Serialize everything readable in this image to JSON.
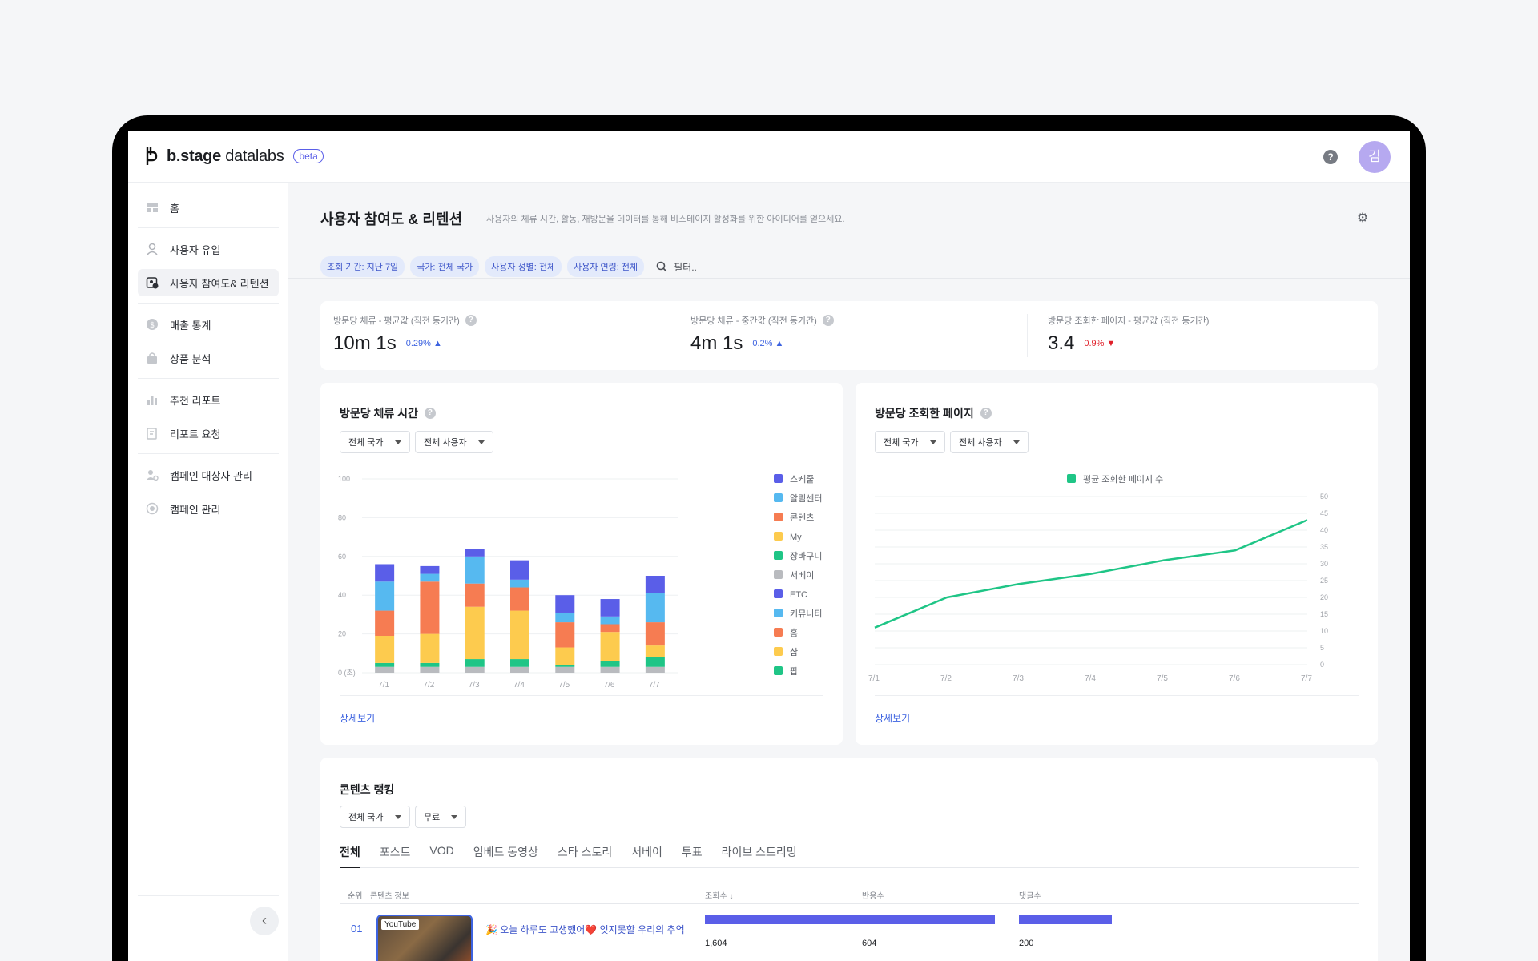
{
  "app": {
    "logo_main": "b.stage",
    "logo_sub": "datalabs",
    "beta": "beta",
    "help": "?",
    "avatar": "김"
  },
  "sidebar": {
    "items": [
      {
        "label": "홈",
        "icon": "dashboard-icon"
      },
      {
        "label": "사용자 유입",
        "icon": "user-icon"
      },
      {
        "label": "사용자 참여도& 리텐션",
        "icon": "engagement-icon",
        "active": true
      },
      {
        "label": "매출 통계",
        "icon": "dollar-icon"
      },
      {
        "label": "상품 분석",
        "icon": "bag-icon"
      },
      {
        "label": "추천 리포트",
        "icon": "bar-chart-icon"
      },
      {
        "label": "리포트 요청",
        "icon": "edit-doc-icon"
      },
      {
        "label": "캠페인 대상자 관리",
        "icon": "user-settings-icon"
      },
      {
        "label": "캠페인 관리",
        "icon": "target-icon"
      }
    ],
    "collapse": "‹"
  },
  "page": {
    "title": "사용자 참여도 & 리텐션",
    "description": "사용자의 체류 시간, 활동, 재방문율 데이터를 통해 비스테이지 활성화를 위한 아이디어를 얻으세요.",
    "filters": [
      "조회 기간: 지난 7일",
      "국가: 전체 국가",
      "사용자 성별: 전체",
      "사용자 연령: 전체"
    ],
    "filter_placeholder": "필터.."
  },
  "kpis": [
    {
      "label": "방문당 체류 - 평균값 (직전 동기간)",
      "value": "10m 1s",
      "delta": "0.29%",
      "direction": "up",
      "color": "#3d63e0"
    },
    {
      "label": "방문당 체류 - 중간값 (직전 동기간)",
      "value": "4m 1s",
      "delta": "0.2%",
      "direction": "up",
      "color": "#3d63e0"
    },
    {
      "label": "방문당 조회한 페이지 - 평균값 (직전 동기간)",
      "value": "3.4",
      "delta": "0.9%",
      "direction": "down",
      "color": "#e0202a"
    }
  ],
  "dwell_chart": {
    "title": "방문당 체류 시간",
    "dropdowns": [
      "전체 국가",
      "전체 사용자"
    ],
    "more": "상세보기"
  },
  "pages_chart": {
    "title": "방문당 조회한 페이지",
    "dropdowns": [
      "전체 국가",
      "전체 사용자"
    ],
    "more": "상세보기"
  },
  "chart_data": [
    {
      "type": "bar",
      "stacked": true,
      "title": "방문당 체류 시간",
      "categories": [
        "7/1",
        "7/2",
        "7/3",
        "7/4",
        "7/5",
        "7/6",
        "7/7"
      ],
      "y_ticks": [
        "0 (초)",
        "20",
        "40",
        "60",
        "80",
        "100"
      ],
      "ylim": [
        0,
        100
      ],
      "legend": [
        "스케줄",
        "알림센터",
        "콘텐츠",
        "My",
        "장바구니",
        "서베이",
        "ETC",
        "커뮤니티",
        "홈",
        "샵",
        "팝"
      ],
      "legend_colors": [
        "#5a5ee8",
        "#56b9f0",
        "#f67c52",
        "#fdcb4e",
        "#1fc586",
        "#b9bbbf",
        "#5a5ee8",
        "#56b9f0",
        "#f67c52",
        "#fdcb4e",
        "#1fc586"
      ],
      "series": [
        {
          "name": "서베이",
          "color": "#b9bbbf",
          "values": [
            3,
            3,
            3,
            3,
            3,
            3,
            3
          ]
        },
        {
          "name": "장바구니",
          "color": "#1fc586",
          "values": [
            2,
            2,
            4,
            4,
            1,
            3,
            5
          ]
        },
        {
          "name": "My",
          "color": "#fdcb4e",
          "values": [
            14,
            15,
            27,
            25,
            9,
            15,
            6
          ]
        },
        {
          "name": "콘텐츠",
          "color": "#f67c52",
          "values": [
            13,
            27,
            12,
            12,
            13,
            4,
            12
          ]
        },
        {
          "name": "알림센터",
          "color": "#56b9f0",
          "values": [
            15,
            4,
            14,
            4,
            5,
            4,
            15
          ]
        },
        {
          "name": "스케줄",
          "color": "#5a5ee8",
          "values": [
            9,
            4,
            4,
            10,
            9,
            9,
            9
          ]
        }
      ]
    },
    {
      "type": "line",
      "title": "방문당 조회한 페이지",
      "x": [
        "7/1",
        "7/2",
        "7/3",
        "7/4",
        "7/5",
        "7/6",
        "7/7"
      ],
      "y_ticks": [
        "0",
        "5",
        "10",
        "15",
        "20",
        "25",
        "30",
        "35",
        "40",
        "45",
        "50"
      ],
      "ylim": [
        0,
        50
      ],
      "y_axis_side": "right",
      "legend": "top-center",
      "series": [
        {
          "name": "평균 조회한 페이지 수",
          "color": "#1fc586",
          "values": [
            11,
            20,
            24,
            27,
            31,
            34,
            43
          ]
        }
      ]
    }
  ],
  "ranking": {
    "title": "콘텐츠 랭킹",
    "dropdowns": [
      "전체 국가",
      "무료"
    ],
    "tabs": [
      "전체",
      "포스트",
      "VOD",
      "임베드 동영상",
      "스타 스토리",
      "서베이",
      "투표",
      "라이브 스트리밍"
    ],
    "columns": {
      "rank": "순위",
      "info": "콘텐츠 정보",
      "views": "조회수",
      "reactions": "반응수",
      "comments": "댓글수"
    },
    "rows": [
      {
        "rank": "01",
        "badge": "YouTube",
        "title": "🎉 오늘 하루도 고생했어❤️ 잊지못할 우리의 추억",
        "views": "1,604",
        "reactions": "604",
        "comments": "200",
        "views_num": 1604,
        "reactions_num": 604,
        "comments_num": 200
      }
    ]
  }
}
